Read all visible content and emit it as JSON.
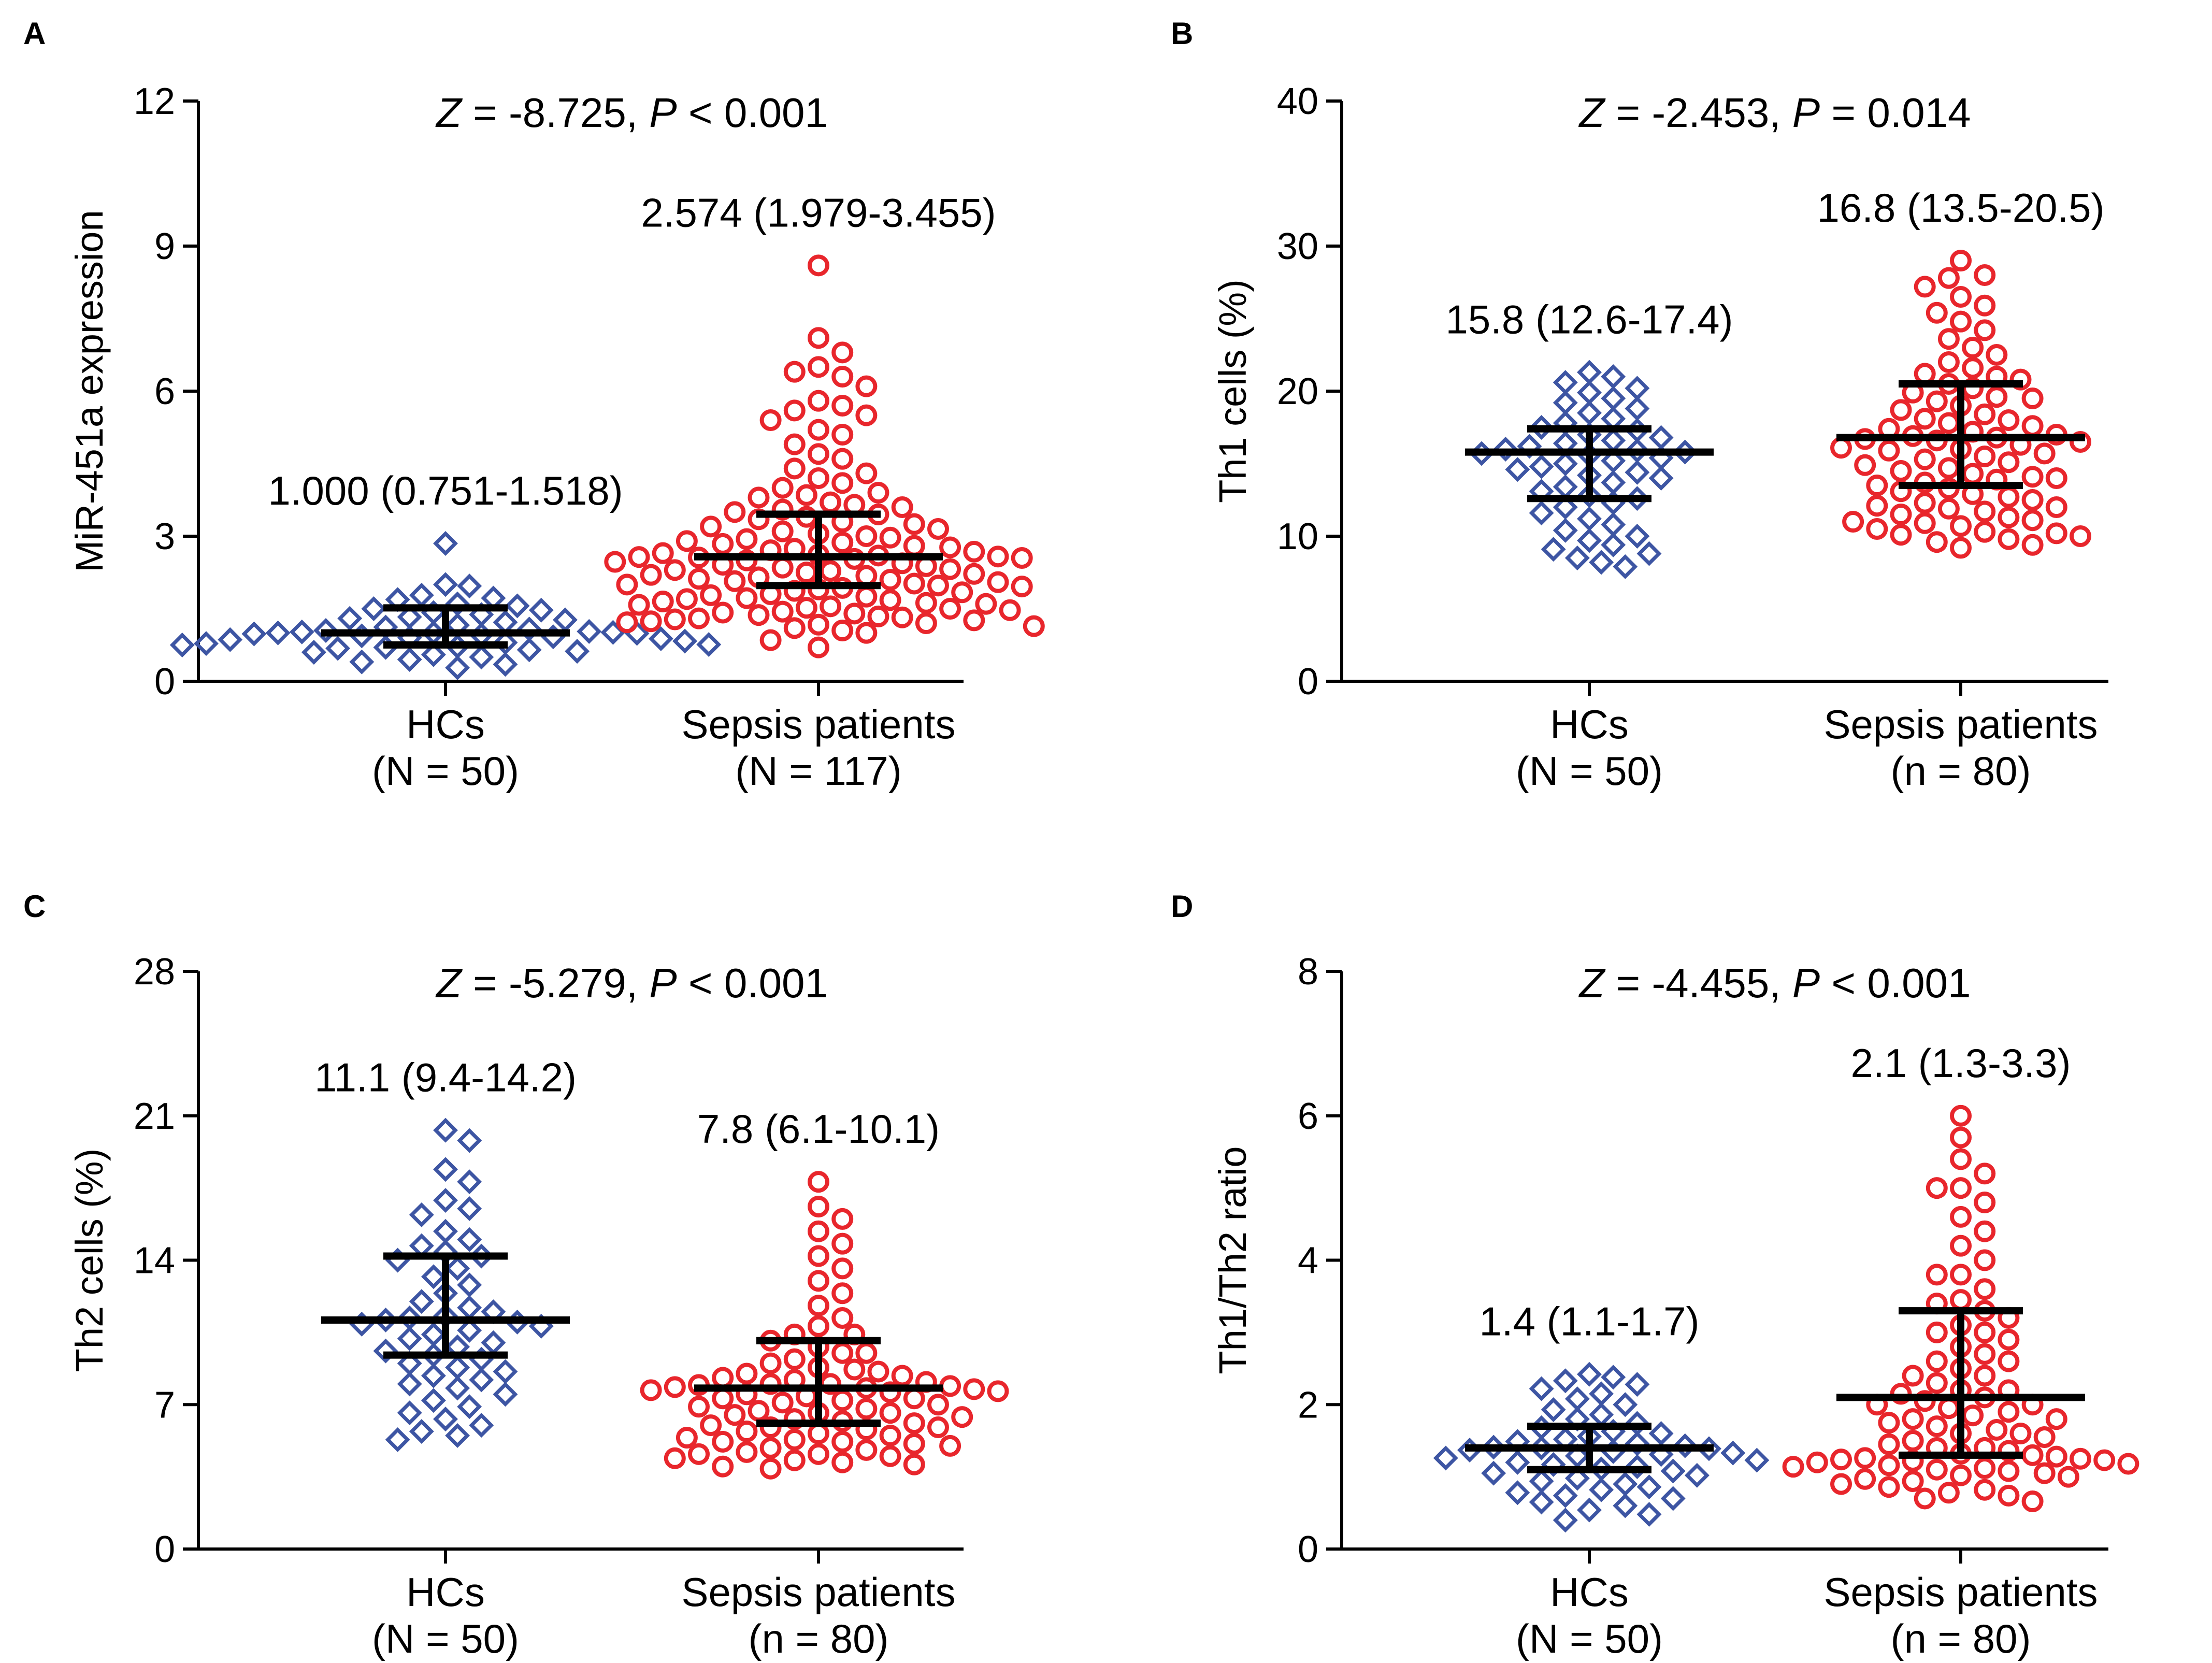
{
  "chart_data": [
    {
      "type": "scatter",
      "panel": "A",
      "stat": {
        "z": "-8.725",
        "p_op": "<",
        "p": "0.001"
      },
      "ylabel": "MiR-451a expression",
      "ylim": [
        0,
        12
      ],
      "yticks": [
        0,
        3,
        6,
        9,
        12
      ],
      "groups": [
        {
          "name": "HCs",
          "n_label": "(N = 50)",
          "color": "#3d55a3",
          "marker": "diamond",
          "median": 1.0,
          "q1": 0.751,
          "q3": 1.518,
          "label": "1.000 (0.751-1.518)",
          "values": [
            2.85,
            2.0,
            1.97,
            1.78,
            1.72,
            1.69,
            1.6,
            1.56,
            1.5,
            1.47,
            1.42,
            1.38,
            1.33,
            1.3,
            1.27,
            1.22,
            1.16,
            1.12,
            1.08,
            1.05,
            1.03,
            1.02,
            1.01,
            1.0,
            1.0,
            0.99,
            0.98,
            0.96,
            0.94,
            0.92,
            0.9,
            0.88,
            0.86,
            0.83,
            0.8,
            0.78,
            0.76,
            0.75,
            0.72,
            0.7,
            0.68,
            0.65,
            0.62,
            0.6,
            0.55,
            0.5,
            0.45,
            0.4,
            0.35,
            0.28
          ]
        },
        {
          "name": "Sepsis patients",
          "n_label": "(N = 117)",
          "color": "#e8262c",
          "marker": "circle",
          "median": 2.574,
          "q1": 1.979,
          "q3": 3.455,
          "label": "2.574 (1.979-3.455)",
          "values": [
            8.6,
            7.1,
            6.8,
            6.5,
            6.4,
            6.3,
            6.1,
            5.8,
            5.7,
            5.6,
            5.5,
            5.4,
            5.2,
            5.1,
            4.9,
            4.7,
            4.6,
            4.4,
            4.3,
            4.2,
            4.1,
            4.0,
            3.9,
            3.85,
            3.8,
            3.7,
            3.65,
            3.6,
            3.55,
            3.5,
            3.45,
            3.4,
            3.35,
            3.3,
            3.25,
            3.2,
            3.15,
            3.1,
            3.05,
            3.0,
            2.97,
            2.94,
            2.9,
            2.87,
            2.84,
            2.8,
            2.77,
            2.74,
            2.71,
            2.68,
            2.65,
            2.62,
            2.6,
            2.58,
            2.57,
            2.56,
            2.55,
            2.53,
            2.5,
            2.47,
            2.44,
            2.41,
            2.38,
            2.35,
            2.32,
            2.3,
            2.28,
            2.25,
            2.22,
            2.2,
            2.18,
            2.15,
            2.12,
            2.1,
            2.07,
            2.05,
            2.02,
            2.0,
            1.98,
            1.96,
            1.93,
            1.9,
            1.87,
            1.84,
            1.8,
            1.78,
            1.75,
            1.72,
            1.7,
            1.68,
            1.65,
            1.62,
            1.6,
            1.58,
            1.55,
            1.52,
            1.5,
            1.47,
            1.44,
            1.42,
            1.4,
            1.37,
            1.34,
            1.32,
            1.3,
            1.28,
            1.26,
            1.24,
            1.22,
            1.2,
            1.17,
            1.14,
            1.1,
            1.05,
            1.0,
            0.85,
            0.7
          ]
        }
      ]
    },
    {
      "type": "scatter",
      "panel": "B",
      "stat": {
        "z": "-2.453",
        "p_op": "=",
        "p": "0.014"
      },
      "ylabel": "Th1 cells (%)",
      "ylim": [
        0,
        40
      ],
      "yticks": [
        0,
        10,
        20,
        30,
        40
      ],
      "groups": [
        {
          "name": "HCs",
          "n_label": "(N = 50)",
          "color": "#3d55a3",
          "marker": "diamond",
          "median": 15.8,
          "q1": 12.6,
          "q3": 17.4,
          "label": "15.8 (12.6-17.4)",
          "values": [
            21.3,
            21.0,
            20.6,
            20.2,
            19.9,
            19.5,
            19.2,
            18.8,
            18.5,
            18.1,
            17.8,
            17.5,
            17.3,
            17.0,
            16.8,
            16.6,
            16.4,
            16.2,
            16.0,
            15.9,
            15.8,
            15.7,
            15.6,
            15.4,
            15.2,
            15.0,
            14.8,
            14.6,
            14.4,
            14.2,
            14.0,
            13.7,
            13.4,
            13.1,
            12.8,
            12.6,
            12.3,
            12.0,
            11.6,
            11.2,
            10.8,
            10.4,
            10.0,
            9.7,
            9.4,
            9.1,
            8.8,
            8.5,
            8.2,
            7.9
          ]
        },
        {
          "name": "Sepsis patients",
          "n_label": "(n = 80)",
          "color": "#e8262c",
          "marker": "circle",
          "median": 16.8,
          "q1": 13.5,
          "q3": 20.5,
          "label": "16.8 (13.5-20.5)",
          "values": [
            29.0,
            28.0,
            27.8,
            27.2,
            26.5,
            25.9,
            25.4,
            24.8,
            24.2,
            23.6,
            23.0,
            22.5,
            22.0,
            21.6,
            21.2,
            20.8,
            20.5,
            20.2,
            19.9,
            19.6,
            19.3,
            19.0,
            18.7,
            18.4,
            18.1,
            17.8,
            17.6,
            17.4,
            17.2,
            17.0,
            16.9,
            16.8,
            16.7,
            16.6,
            16.5,
            16.3,
            16.1,
            15.9,
            15.7,
            15.5,
            15.3,
            15.1,
            14.9,
            14.7,
            14.5,
            14.3,
            14.1,
            13.9,
            13.7,
            13.5,
            13.3,
            13.1,
            12.9,
            12.7,
            12.5,
            12.3,
            12.1,
            11.9,
            11.7,
            11.5,
            11.3,
            11.1,
            10.9,
            10.7,
            10.5,
            10.3,
            10.1,
            10.0,
            9.8,
            9.6,
            9.4,
            9.2,
            21.0,
            19.5,
            18.0,
            16.0,
            14.0,
            12.0,
            11.0,
            10.2
          ]
        }
      ]
    },
    {
      "type": "scatter",
      "panel": "C",
      "stat": {
        "z": "-5.279",
        "p_op": "<",
        "p": "0.001"
      },
      "ylabel": "Th2 cells (%)",
      "ylim": [
        0,
        28
      ],
      "yticks": [
        0,
        7,
        14,
        21,
        28
      ],
      "groups": [
        {
          "name": "HCs",
          "n_label": "(N = 50)",
          "color": "#3d55a3",
          "marker": "diamond",
          "median": 11.1,
          "q1": 9.4,
          "q3": 14.2,
          "label": "11.1 (9.4-14.2)",
          "values": [
            20.3,
            19.8,
            18.4,
            17.8,
            16.9,
            16.5,
            16.2,
            15.4,
            15.0,
            14.7,
            14.4,
            14.2,
            14.0,
            13.6,
            13.2,
            12.8,
            12.4,
            12.0,
            11.7,
            11.5,
            11.3,
            11.2,
            11.1,
            11.0,
            10.9,
            10.8,
            10.6,
            10.4,
            10.2,
            10.0,
            9.8,
            9.6,
            9.4,
            9.2,
            9.0,
            8.8,
            8.6,
            8.4,
            8.2,
            8.0,
            7.8,
            7.5,
            7.2,
            6.9,
            6.6,
            6.3,
            6.0,
            5.7,
            5.5,
            5.3
          ]
        },
        {
          "name": "Sepsis patients",
          "n_label": "(n = 80)",
          "color": "#e8262c",
          "marker": "circle",
          "median": 7.8,
          "q1": 6.1,
          "q3": 10.1,
          "label": "7.8 (6.1-10.1)",
          "values": [
            17.8,
            16.6,
            16.0,
            15.4,
            14.8,
            14.2,
            13.6,
            13.0,
            12.4,
            11.8,
            11.2,
            10.8,
            10.4,
            10.1,
            9.8,
            9.5,
            9.2,
            9.0,
            8.8,
            8.6,
            8.5,
            8.4,
            8.3,
            8.2,
            8.1,
            8.0,
            7.95,
            7.9,
            7.85,
            7.8,
            7.75,
            7.7,
            7.65,
            7.6,
            7.5,
            7.4,
            7.3,
            7.2,
            7.1,
            7.0,
            6.9,
            6.8,
            6.7,
            6.6,
            6.5,
            6.4,
            6.3,
            6.2,
            6.1,
            6.0,
            5.9,
            5.8,
            5.7,
            5.6,
            5.5,
            5.4,
            5.3,
            5.2,
            5.1,
            5.0,
            4.9,
            4.8,
            4.7,
            4.6,
            4.5,
            4.4,
            4.3,
            4.2,
            4.1,
            4.0,
            3.9,
            8.7,
            8.0,
            7.3,
            6.6,
            5.9,
            5.2,
            4.6,
            9.5,
            10.4
          ]
        }
      ]
    },
    {
      "type": "scatter",
      "panel": "D",
      "stat": {
        "z": "-4.455",
        "p_op": "<",
        "p": "0.001"
      },
      "ylabel": "Th1/Th2 ratio",
      "ylim": [
        0,
        8
      ],
      "yticks": [
        0,
        2,
        4,
        6,
        8
      ],
      "groups": [
        {
          "name": "HCs",
          "n_label": "(N = 50)",
          "color": "#3d55a3",
          "marker": "diamond",
          "median": 1.4,
          "q1": 1.1,
          "q3": 1.7,
          "label": "1.4 (1.1-1.7)",
          "values": [
            2.42,
            2.38,
            2.33,
            2.28,
            2.22,
            2.15,
            2.08,
            2.0,
            1.93,
            1.86,
            1.8,
            1.74,
            1.68,
            1.63,
            1.6,
            1.56,
            1.52,
            1.49,
            1.46,
            1.43,
            1.41,
            1.4,
            1.39,
            1.37,
            1.35,
            1.33,
            1.31,
            1.29,
            1.26,
            1.23,
            1.2,
            1.17,
            1.14,
            1.11,
            1.08,
            1.05,
            1.02,
            0.98,
            0.94,
            0.9,
            0.86,
            0.82,
            0.78,
            0.74,
            0.7,
            0.65,
            0.6,
            0.54,
            0.48,
            0.4
          ]
        },
        {
          "name": "Sepsis patients",
          "n_label": "(n = 80)",
          "color": "#e8262c",
          "marker": "circle",
          "median": 2.1,
          "q1": 1.3,
          "q3": 3.3,
          "label": "2.1 (1.3-3.3)",
          "values": [
            6.0,
            5.7,
            5.4,
            5.2,
            5.0,
            4.8,
            4.6,
            4.4,
            4.2,
            4.0,
            3.8,
            3.6,
            3.45,
            3.3,
            3.2,
            3.1,
            3.0,
            2.9,
            2.8,
            2.7,
            2.6,
            2.5,
            2.4,
            2.3,
            2.2,
            2.15,
            2.1,
            2.05,
            2.0,
            1.95,
            1.9,
            1.85,
            1.8,
            1.75,
            1.7,
            1.65,
            1.6,
            1.55,
            1.5,
            1.45,
            1.4,
            1.36,
            1.32,
            1.3,
            1.28,
            1.26,
            1.25,
            1.24,
            1.23,
            1.22,
            1.2,
            1.18,
            1.16,
            1.14,
            1.12,
            1.1,
            1.08,
            1.05,
            1.02,
            1.0,
            0.97,
            0.94,
            0.9,
            0.86,
            0.82,
            0.78,
            0.74,
            0.7,
            0.66,
            2.6,
            2.4,
            2.2,
            2.0,
            1.8,
            1.6,
            1.4,
            3.0,
            3.4,
            3.8,
            5.0
          ]
        }
      ]
    }
  ]
}
